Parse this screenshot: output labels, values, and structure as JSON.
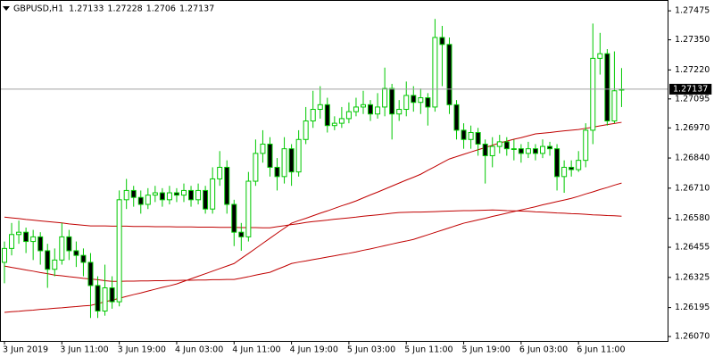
{
  "chart_data": {
    "type": "candlestick",
    "symbol": "GBPUSD,H1",
    "categories": [
      "3 Jun 2019",
      null,
      null,
      null,
      null,
      null,
      null,
      null,
      "3 Jun 11:00",
      null,
      null,
      null,
      null,
      null,
      null,
      null,
      "3 Jun 19:00",
      null,
      null,
      null,
      null,
      null,
      null,
      null,
      "4 Jun 03:00",
      null,
      null,
      null,
      null,
      null,
      null,
      null,
      "4 Jun 11:00",
      null,
      null,
      null,
      null,
      null,
      null,
      null,
      "4 Jun 19:00",
      null,
      null,
      null,
      null,
      null,
      null,
      null,
      "5 Jun 03:00",
      null,
      null,
      null,
      null,
      null,
      null,
      null,
      "5 Jun 11:00",
      null,
      null,
      null,
      null,
      null,
      null,
      null,
      "5 Jun 19:00",
      null,
      null,
      null,
      null,
      null,
      null,
      null,
      "6 Jun 03:00",
      null,
      null,
      null,
      null,
      null,
      null,
      null,
      "6 Jun 11:00",
      null,
      null,
      null,
      null,
      null,
      null
    ],
    "open": [
      1.2639,
      1.2645,
      1.2651,
      1.2652,
      1.2648,
      1.265,
      1.2644,
      1.2636,
      1.264,
      1.265,
      1.2644,
      1.2642,
      1.2639,
      1.2629,
      1.2618,
      1.2628,
      1.2622,
      1.2666,
      1.267,
      1.2667,
      1.2664,
      1.2668,
      1.2669,
      1.2666,
      1.2669,
      1.2668,
      1.267,
      1.2666,
      1.267,
      1.2662,
      1.2675,
      1.268,
      1.2664,
      1.2652,
      1.265,
      1.2674,
      1.2686,
      1.269,
      1.268,
      1.2676,
      1.2688,
      1.2678,
      1.2692,
      1.27,
      1.2705,
      1.2707,
      1.2698,
      1.2699,
      1.2701,
      1.2704,
      1.2706,
      1.2707,
      1.2703,
      1.2706,
      1.2714,
      1.2703,
      1.2705,
      1.2711,
      1.2708,
      1.271,
      1.2706,
      1.2736,
      1.2733,
      1.2707,
      1.2696,
      1.2692,
      1.2695,
      1.269,
      1.2685,
      1.2689,
      1.2691,
      1.2688,
      1.2688,
      1.2686,
      1.2688,
      1.2686,
      1.2689,
      1.2688,
      1.2676,
      1.268,
      1.2679,
      1.2683,
      1.2696,
      1.2727,
      1.2729,
      1.27,
      1.27133
    ],
    "high": [
      1.2648,
      1.2656,
      1.2657,
      1.2654,
      1.2653,
      1.2652,
      1.2647,
      1.2645,
      1.2656,
      1.2653,
      1.2648,
      1.2645,
      1.2643,
      1.2633,
      1.2638,
      1.2633,
      1.267,
      1.2675,
      1.2672,
      1.267,
      1.2671,
      1.2672,
      1.2671,
      1.2672,
      1.2671,
      1.2673,
      1.2672,
      1.2673,
      1.2672,
      1.268,
      1.2687,
      1.2683,
      1.2666,
      1.2656,
      1.2678,
      1.2692,
      1.2696,
      1.2693,
      1.2684,
      1.2693,
      1.269,
      1.2696,
      1.2706,
      1.2713,
      1.2715,
      1.271,
      1.2702,
      1.2706,
      1.2708,
      1.271,
      1.2713,
      1.2709,
      1.2712,
      1.2723,
      1.2716,
      1.2709,
      1.2717,
      1.2715,
      1.2714,
      1.2712,
      1.2744,
      1.2741,
      1.2736,
      1.2709,
      1.2699,
      1.2698,
      1.2697,
      1.2692,
      1.2693,
      1.2694,
      1.2693,
      1.2692,
      1.269,
      1.2691,
      1.269,
      1.2692,
      1.2691,
      1.269,
      1.2683,
      1.2683,
      1.2687,
      1.2699,
      1.2742,
      1.2738,
      1.2731,
      1.273,
      1.27228
    ],
    "low": [
      1.263,
      1.2642,
      1.2647,
      1.2643,
      1.264,
      1.2638,
      1.2628,
      1.2633,
      1.2638,
      1.264,
      1.2637,
      1.2633,
      1.2615,
      1.2615,
      1.2616,
      1.2619,
      1.262,
      1.2662,
      1.2663,
      1.266,
      1.2662,
      1.2665,
      1.2663,
      1.2664,
      1.2665,
      1.2665,
      1.2663,
      1.2664,
      1.266,
      1.266,
      1.2672,
      1.266,
      1.2646,
      1.2644,
      1.2648,
      1.2672,
      1.2682,
      1.2676,
      1.267,
      1.2673,
      1.2672,
      1.2676,
      1.269,
      1.2697,
      1.2701,
      1.2695,
      1.2696,
      1.2697,
      1.2699,
      1.2702,
      1.2703,
      1.27,
      1.2701,
      1.2702,
      1.2692,
      1.27,
      1.2702,
      1.2704,
      1.2703,
      1.2698,
      1.2704,
      1.2715,
      1.2703,
      1.2692,
      1.2688,
      1.2688,
      1.2685,
      1.2673,
      1.268,
      1.2686,
      1.2685,
      1.2683,
      1.2682,
      1.2684,
      1.2683,
      1.2684,
      1.2685,
      1.267,
      1.2669,
      1.2676,
      1.2678,
      1.268,
      1.269,
      1.272,
      1.2698,
      1.2699,
      1.2706
    ],
    "close": [
      1.2645,
      1.2651,
      1.2652,
      1.2648,
      1.265,
      1.2644,
      1.2636,
      1.264,
      1.265,
      1.2644,
      1.2642,
      1.2639,
      1.2629,
      1.2618,
      1.2628,
      1.2622,
      1.2666,
      1.267,
      1.2667,
      1.2664,
      1.2668,
      1.2669,
      1.2666,
      1.2669,
      1.2668,
      1.267,
      1.2666,
      1.267,
      1.2662,
      1.2675,
      1.268,
      1.2664,
      1.2652,
      1.265,
      1.2674,
      1.2686,
      1.269,
      1.268,
      1.2676,
      1.2688,
      1.2678,
      1.2692,
      1.27,
      1.2705,
      1.2707,
      1.2698,
      1.2699,
      1.2701,
      1.2704,
      1.2706,
      1.2707,
      1.2703,
      1.2706,
      1.2714,
      1.2703,
      1.2705,
      1.2711,
      1.2708,
      1.271,
      1.2706,
      1.2736,
      1.2733,
      1.2707,
      1.2696,
      1.2692,
      1.2695,
      1.269,
      1.2685,
      1.2689,
      1.2691,
      1.2688,
      1.2688,
      1.2686,
      1.2688,
      1.2686,
      1.2689,
      1.2688,
      1.2676,
      1.268,
      1.2679,
      1.2683,
      1.2696,
      1.2727,
      1.2729,
      1.27,
      1.2713,
      1.27137
    ],
    "bull_color": "#00c800",
    "bull_fill": "#ffffff",
    "bear_color": "#000000",
    "lines": [
      {
        "color": "#c00000",
        "values": [
          1.26174,
          1.26177,
          1.26179,
          1.26182,
          1.26184,
          1.26187,
          1.26189,
          1.26192,
          1.26194,
          1.26197,
          1.26199,
          1.26202,
          1.26204,
          1.26212,
          1.2622,
          1.26227,
          1.26235,
          1.26243,
          1.26251,
          1.26258,
          1.26266,
          1.26274,
          1.26282,
          1.26289,
          1.26297,
          1.26308,
          1.26319,
          1.2633,
          1.26341,
          1.26352,
          1.26363,
          1.26374,
          1.26385,
          1.26407,
          1.26428,
          1.2645,
          1.26472,
          1.26494,
          1.26516,
          1.26537,
          1.26559,
          1.2657,
          1.2658,
          1.26591,
          1.26602,
          1.26612,
          1.26623,
          1.26634,
          1.26644,
          1.26655,
          1.26668,
          1.26681,
          1.26693,
          1.26706,
          1.26719,
          1.26732,
          1.26745,
          1.26757,
          1.2677,
          1.26787,
          1.26803,
          1.2682,
          1.26836,
          1.26846,
          1.26856,
          1.26866,
          1.26876,
          1.26885,
          1.26895,
          1.26905,
          1.26913,
          1.26921,
          1.26928,
          1.26936,
          1.26944,
          1.26947,
          1.2695,
          1.26954,
          1.26957,
          1.2696,
          1.26963,
          1.26968,
          1.26973,
          1.26979,
          1.26984,
          1.26989,
          1.26994
        ]
      },
      {
        "color": "#c00000",
        "values": [
          1.26374,
          1.26368,
          1.26363,
          1.26357,
          1.26352,
          1.26346,
          1.26341,
          1.26335,
          1.26332,
          1.26328,
          1.26325,
          1.26321,
          1.26318,
          1.26315,
          1.26311,
          1.26308,
          1.26308,
          1.26309,
          1.26309,
          1.2631,
          1.2631,
          1.26311,
          1.26311,
          1.26312,
          1.26312,
          1.26313,
          1.26313,
          1.26314,
          1.26314,
          1.26315,
          1.26315,
          1.26316,
          1.26316,
          1.26322,
          1.26328,
          1.26335,
          1.26341,
          1.26347,
          1.2636,
          1.26372,
          1.26385,
          1.26391,
          1.26396,
          1.26402,
          1.26407,
          1.26413,
          1.26418,
          1.26424,
          1.26429,
          1.26435,
          1.26442,
          1.26448,
          1.26455,
          1.26462,
          1.26469,
          1.26476,
          1.26482,
          1.26489,
          1.26499,
          1.26509,
          1.26519,
          1.26529,
          1.26539,
          1.26549,
          1.26559,
          1.26566,
          1.26573,
          1.2658,
          1.26588,
          1.26595,
          1.26602,
          1.26609,
          1.26616,
          1.26623,
          1.2663,
          1.26638,
          1.26645,
          1.26652,
          1.26659,
          1.26666,
          1.26675,
          1.26685,
          1.26694,
          1.26704,
          1.26713,
          1.26723,
          1.26732
        ]
      },
      {
        "color": "#c00000",
        "values": [
          1.26585,
          1.26582,
          1.26579,
          1.26575,
          1.26572,
          1.26569,
          1.26566,
          1.26563,
          1.2656,
          1.26556,
          1.26553,
          1.2655,
          1.26547,
          1.26547,
          1.26547,
          1.26546,
          1.26546,
          1.26546,
          1.26545,
          1.26545,
          1.26545,
          1.26544,
          1.26544,
          1.26544,
          1.26543,
          1.26543,
          1.26543,
          1.26542,
          1.26542,
          1.26542,
          1.26541,
          1.26541,
          1.26541,
          1.2654,
          1.2654,
          1.2654,
          1.26539,
          1.26539,
          1.26544,
          1.26548,
          1.26553,
          1.26557,
          1.26562,
          1.26566,
          1.26569,
          1.26572,
          1.26576,
          1.26579,
          1.26582,
          1.26585,
          1.26589,
          1.26592,
          1.26595,
          1.26598,
          1.26602,
          1.26605,
          1.26606,
          1.26607,
          1.26607,
          1.26608,
          1.26609,
          1.2661,
          1.26611,
          1.26612,
          1.26613,
          1.26613,
          1.26614,
          1.26615,
          1.26616,
          1.26615,
          1.26613,
          1.26612,
          1.26611,
          1.2661,
          1.26608,
          1.26607,
          1.26605,
          1.26603,
          1.26602,
          1.266,
          1.26599,
          1.26597,
          1.26595,
          1.26594,
          1.26592,
          1.26591,
          1.26589
        ]
      }
    ],
    "last_price": 1.27137,
    "last_price_color": "#a0a0a0",
    "ylim": [
      1.26051,
      1.27514
    ],
    "yticks": [
      1.27475,
      {
        "value": 1.2735,
        "label": "1.27350"
      },
      {
        "value": 1.2722,
        "label": "1.27220"
      },
      1.27095,
      {
        "value": 1.2697,
        "label": "1.26970"
      },
      {
        "value": 1.2684,
        "label": "1.26840"
      },
      {
        "value": 1.2671,
        "label": "1.26710"
      },
      {
        "value": 1.2658,
        "label": "1.26580"
      },
      1.26455,
      1.26325,
      1.26195,
      {
        "value": 1.2607,
        "label": "1.26070"
      }
    ]
  }
}
